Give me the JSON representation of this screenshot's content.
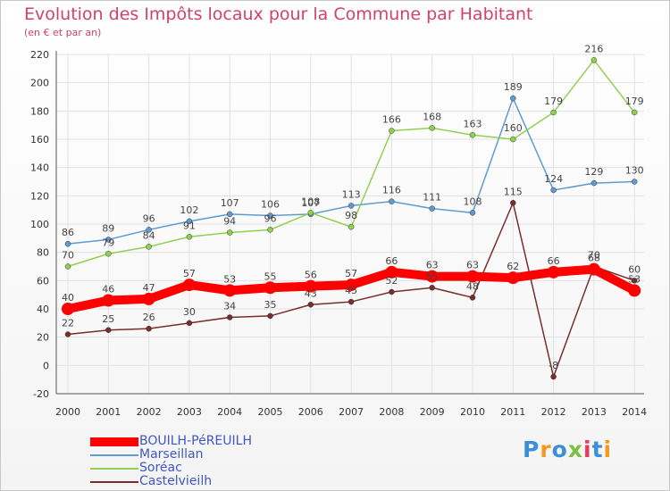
{
  "header": {
    "title": "Evolution des Impôts locaux pour la Commune par Habitant",
    "subtitle": "(en € et par an)"
  },
  "chart_data": {
    "type": "line",
    "title": "Evolution des Impôts locaux pour la Commune par Habitant",
    "subtitle": "(en € et par an)",
    "xlabel": "",
    "ylabel": "",
    "x": [
      "2000",
      "2001",
      "2002",
      "2003",
      "2004",
      "2005",
      "2006",
      "2007",
      "2008",
      "2009",
      "2010",
      "2011",
      "2012",
      "2013",
      "2014"
    ],
    "ylim": [
      -20,
      220
    ],
    "yticks": [
      "-20",
      "0",
      "20",
      "40",
      "60",
      "80",
      "100",
      "120",
      "140",
      "160",
      "180",
      "200",
      "220"
    ],
    "grid": true,
    "legend_position": "bottom-left",
    "series": [
      {
        "name": "BOUILH-PéREUILH",
        "color": "#ff0000",
        "values": [
          40,
          46,
          47,
          57,
          53,
          55,
          56,
          57,
          66,
          63,
          63,
          62,
          66,
          68,
          53
        ]
      },
      {
        "name": "Marseillan",
        "color": "#5f9bd1",
        "values": [
          86,
          89,
          96,
          102,
          107,
          106,
          107,
          113,
          116,
          111,
          108,
          189,
          124,
          129,
          130
        ]
      },
      {
        "name": "Soréac",
        "color": "#8fd14f",
        "values": [
          70,
          79,
          84,
          91,
          94,
          96,
          108,
          98,
          166,
          168,
          163,
          160,
          179,
          216,
          179
        ]
      },
      {
        "name": "Castelvieilh",
        "color": "#7a2d2d",
        "values": [
          22,
          25,
          26,
          30,
          34,
          35,
          43,
          45,
          52,
          55,
          48,
          115,
          -8,
          70,
          60
        ]
      }
    ]
  },
  "logo": {
    "text": "Proxiti"
  }
}
